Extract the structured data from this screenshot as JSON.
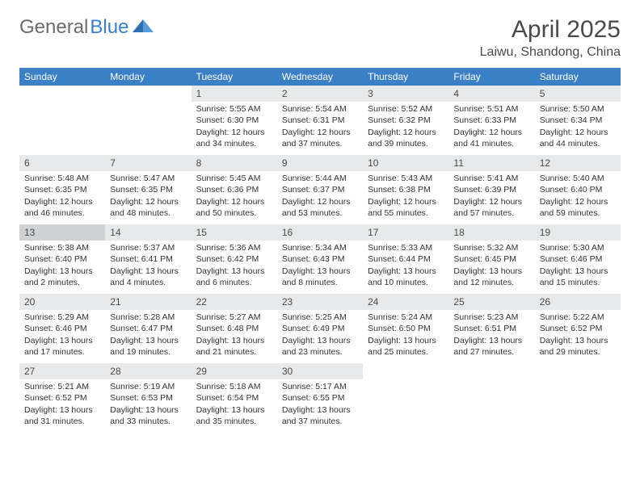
{
  "logo": {
    "textGray": "General",
    "textBlue": "Blue"
  },
  "header": {
    "title": "April 2025",
    "location": "Laiwu, Shandong, China"
  },
  "colors": {
    "headerBg": "#3b7fc4",
    "headerText": "#ffffff",
    "dayNumBg": "#e8e9ea",
    "dayNumTodayBg": "#cfd2d5",
    "pageBg": "#ffffff",
    "text": "#333333",
    "logoGray": "#6b6b6b",
    "logoBlue": "#3b7fc4"
  },
  "columns": [
    "Sunday",
    "Monday",
    "Tuesday",
    "Wednesday",
    "Thursday",
    "Friday",
    "Saturday"
  ],
  "weeks": [
    [
      null,
      null,
      {
        "n": "1",
        "sr": "5:55 AM",
        "ss": "6:30 PM",
        "dl": "12 hours and 34 minutes."
      },
      {
        "n": "2",
        "sr": "5:54 AM",
        "ss": "6:31 PM",
        "dl": "12 hours and 37 minutes."
      },
      {
        "n": "3",
        "sr": "5:52 AM",
        "ss": "6:32 PM",
        "dl": "12 hours and 39 minutes."
      },
      {
        "n": "4",
        "sr": "5:51 AM",
        "ss": "6:33 PM",
        "dl": "12 hours and 41 minutes."
      },
      {
        "n": "5",
        "sr": "5:50 AM",
        "ss": "6:34 PM",
        "dl": "12 hours and 44 minutes."
      }
    ],
    [
      {
        "n": "6",
        "sr": "5:48 AM",
        "ss": "6:35 PM",
        "dl": "12 hours and 46 minutes."
      },
      {
        "n": "7",
        "sr": "5:47 AM",
        "ss": "6:35 PM",
        "dl": "12 hours and 48 minutes."
      },
      {
        "n": "8",
        "sr": "5:45 AM",
        "ss": "6:36 PM",
        "dl": "12 hours and 50 minutes."
      },
      {
        "n": "9",
        "sr": "5:44 AM",
        "ss": "6:37 PM",
        "dl": "12 hours and 53 minutes."
      },
      {
        "n": "10",
        "sr": "5:43 AM",
        "ss": "6:38 PM",
        "dl": "12 hours and 55 minutes."
      },
      {
        "n": "11",
        "sr": "5:41 AM",
        "ss": "6:39 PM",
        "dl": "12 hours and 57 minutes."
      },
      {
        "n": "12",
        "sr": "5:40 AM",
        "ss": "6:40 PM",
        "dl": "12 hours and 59 minutes."
      }
    ],
    [
      {
        "n": "13",
        "sr": "5:38 AM",
        "ss": "6:40 PM",
        "dl": "13 hours and 2 minutes.",
        "today": true
      },
      {
        "n": "14",
        "sr": "5:37 AM",
        "ss": "6:41 PM",
        "dl": "13 hours and 4 minutes."
      },
      {
        "n": "15",
        "sr": "5:36 AM",
        "ss": "6:42 PM",
        "dl": "13 hours and 6 minutes."
      },
      {
        "n": "16",
        "sr": "5:34 AM",
        "ss": "6:43 PM",
        "dl": "13 hours and 8 minutes."
      },
      {
        "n": "17",
        "sr": "5:33 AM",
        "ss": "6:44 PM",
        "dl": "13 hours and 10 minutes."
      },
      {
        "n": "18",
        "sr": "5:32 AM",
        "ss": "6:45 PM",
        "dl": "13 hours and 12 minutes."
      },
      {
        "n": "19",
        "sr": "5:30 AM",
        "ss": "6:46 PM",
        "dl": "13 hours and 15 minutes."
      }
    ],
    [
      {
        "n": "20",
        "sr": "5:29 AM",
        "ss": "6:46 PM",
        "dl": "13 hours and 17 minutes."
      },
      {
        "n": "21",
        "sr": "5:28 AM",
        "ss": "6:47 PM",
        "dl": "13 hours and 19 minutes."
      },
      {
        "n": "22",
        "sr": "5:27 AM",
        "ss": "6:48 PM",
        "dl": "13 hours and 21 minutes."
      },
      {
        "n": "23",
        "sr": "5:25 AM",
        "ss": "6:49 PM",
        "dl": "13 hours and 23 minutes."
      },
      {
        "n": "24",
        "sr": "5:24 AM",
        "ss": "6:50 PM",
        "dl": "13 hours and 25 minutes."
      },
      {
        "n": "25",
        "sr": "5:23 AM",
        "ss": "6:51 PM",
        "dl": "13 hours and 27 minutes."
      },
      {
        "n": "26",
        "sr": "5:22 AM",
        "ss": "6:52 PM",
        "dl": "13 hours and 29 minutes."
      }
    ],
    [
      {
        "n": "27",
        "sr": "5:21 AM",
        "ss": "6:52 PM",
        "dl": "13 hours and 31 minutes."
      },
      {
        "n": "28",
        "sr": "5:19 AM",
        "ss": "6:53 PM",
        "dl": "13 hours and 33 minutes."
      },
      {
        "n": "29",
        "sr": "5:18 AM",
        "ss": "6:54 PM",
        "dl": "13 hours and 35 minutes."
      },
      {
        "n": "30",
        "sr": "5:17 AM",
        "ss": "6:55 PM",
        "dl": "13 hours and 37 minutes."
      },
      null,
      null,
      null
    ]
  ],
  "labels": {
    "sunrise": "Sunrise: ",
    "sunset": "Sunset: ",
    "daylight": "Daylight: "
  }
}
